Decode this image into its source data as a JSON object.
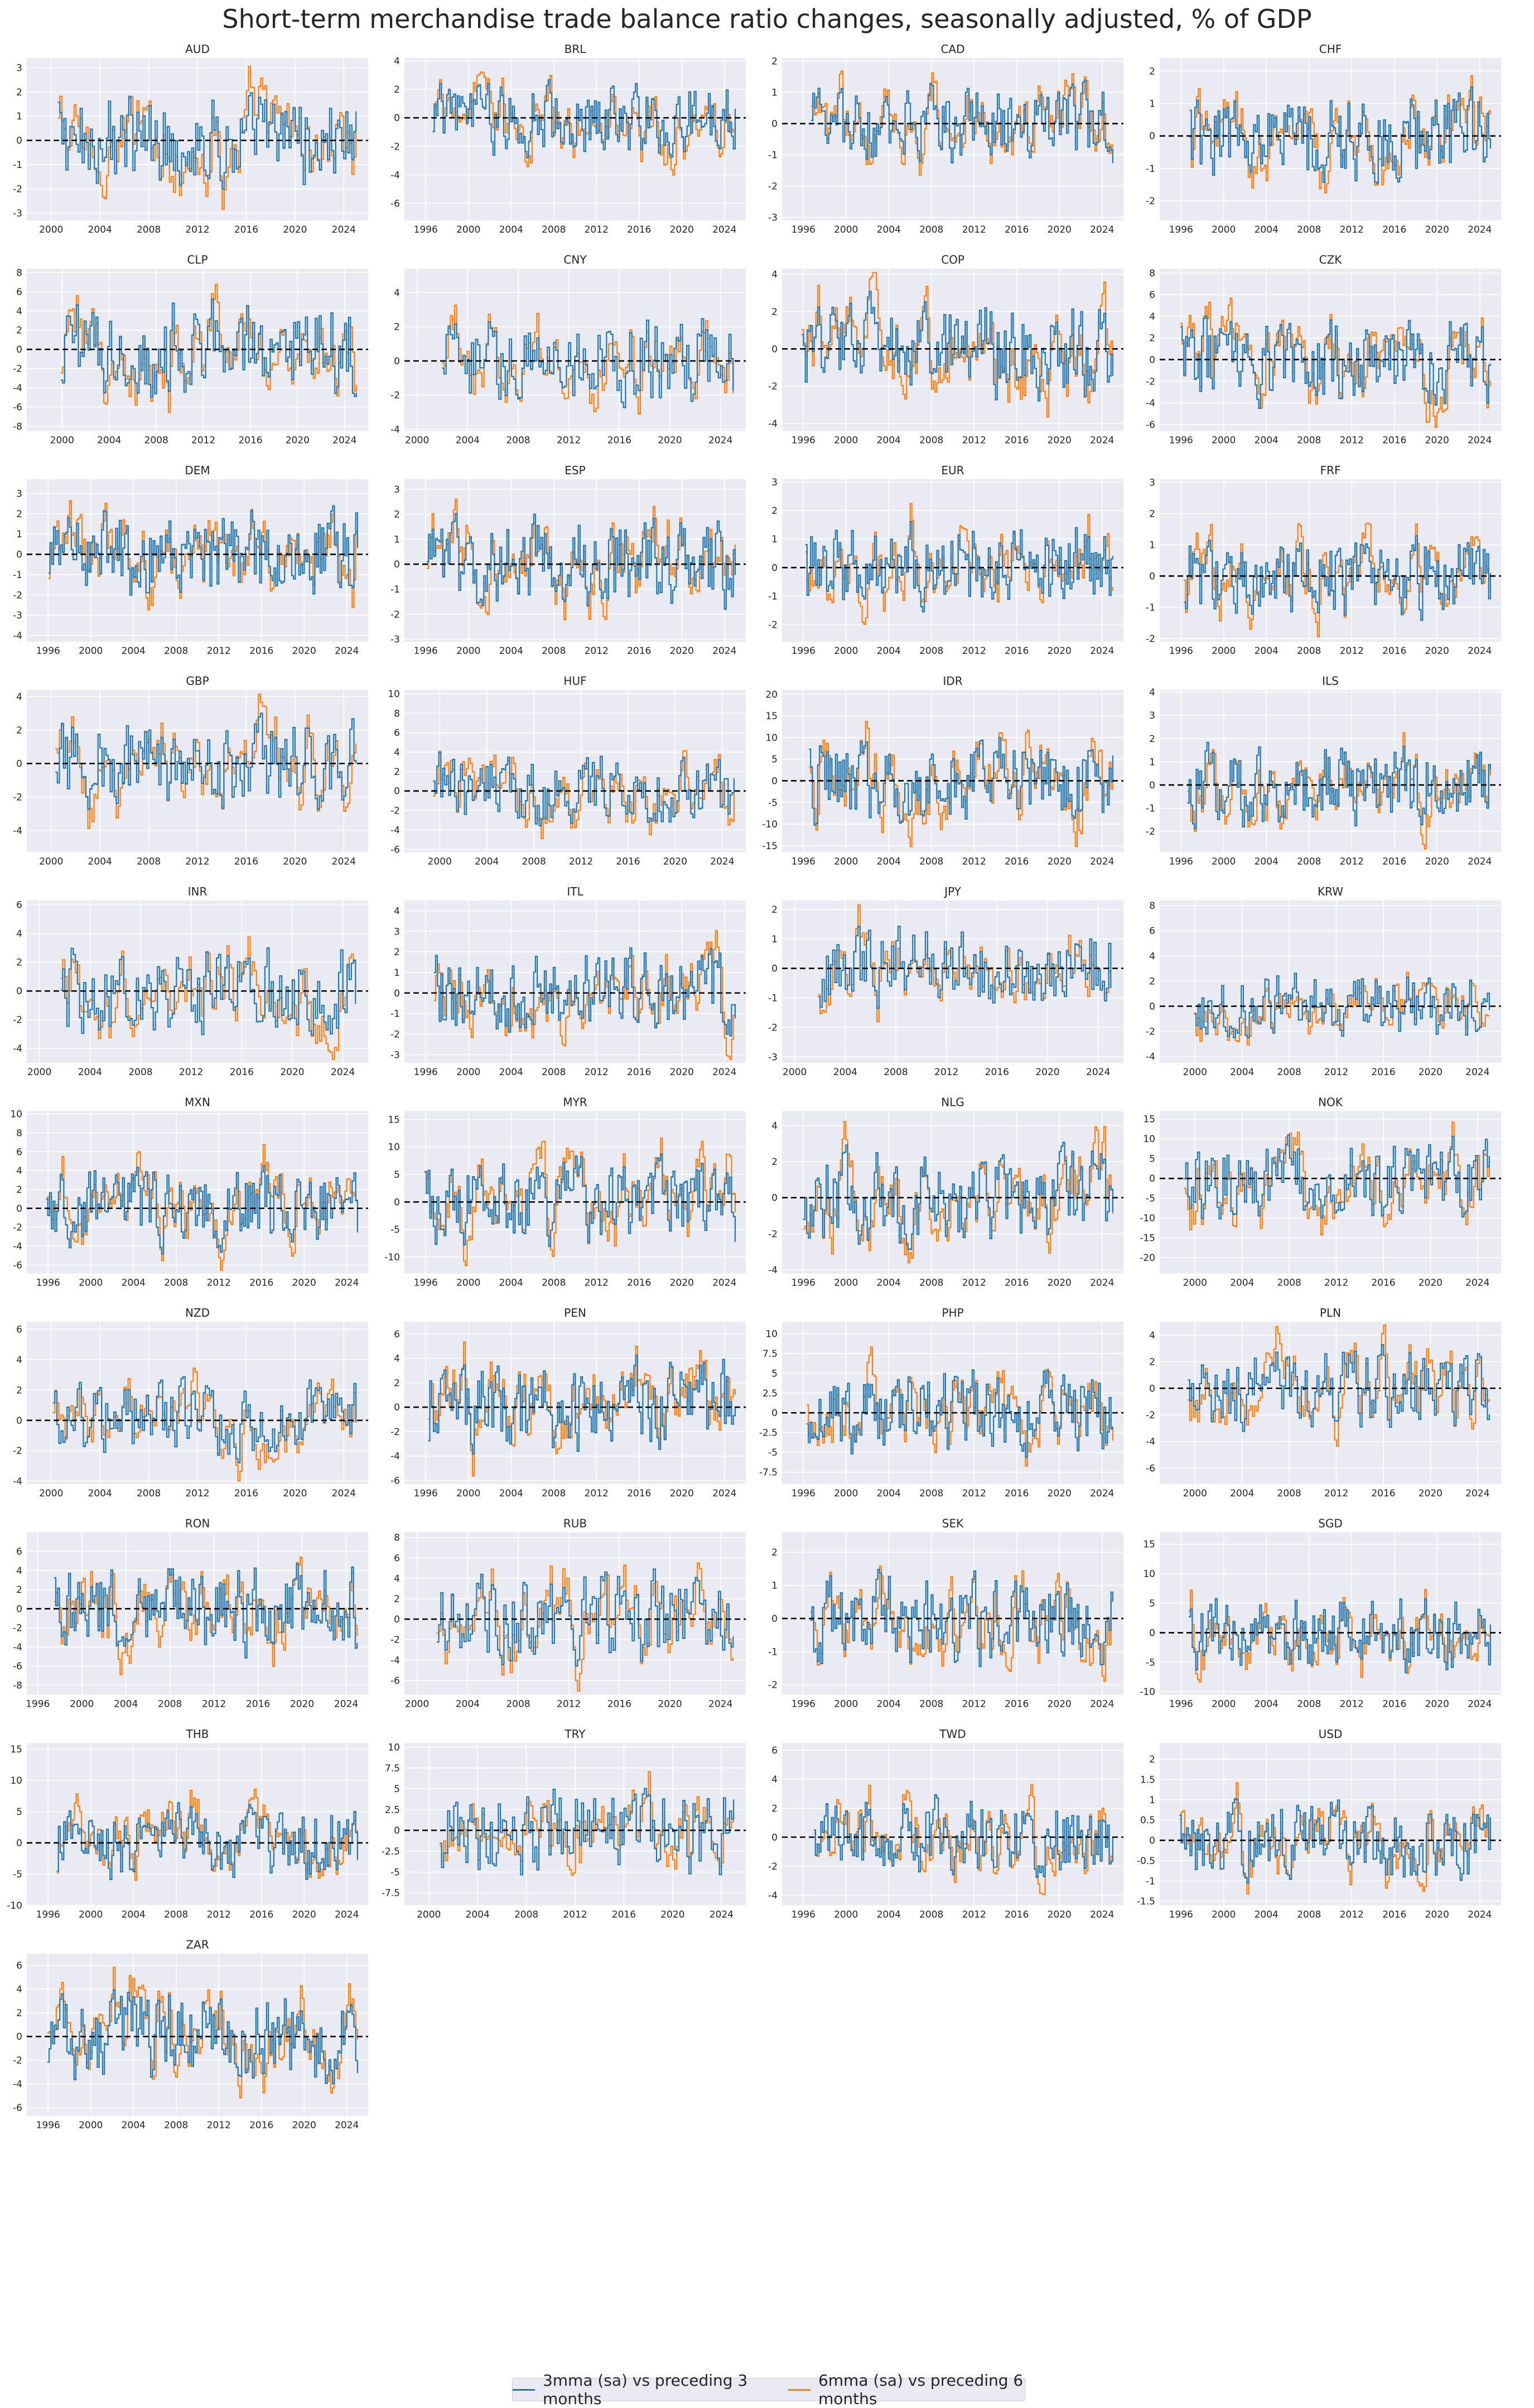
{
  "title": "Short-term merchandise trade balance ratio changes, seasonally adjusted, % of GDP",
  "colors": {
    "series1": "#1f77b4",
    "series2": "#ff7f0e",
    "panel_bg": "#eaeaf2",
    "grid": "#ffffff",
    "zero_line": "#000000"
  },
  "legend": {
    "series1": "3mma (sa) vs preceding 3 months",
    "series2": "6mma (sa) vs preceding 6 months"
  },
  "chart_data": [
    {
      "type": "line",
      "title": "AUD",
      "xlim": [
        1998,
        2026
      ],
      "ylim": [
        -3.3,
        3.4
      ],
      "xticks": [
        2000,
        2004,
        2008,
        2012,
        2016,
        2020,
        2024
      ],
      "yticks": [
        -3,
        -2,
        -1,
        0,
        1,
        2,
        3
      ],
      "series": [
        {
          "name": "3mma (sa) vs preceding 3 months"
        },
        {
          "name": "6mma (sa) vs preceding 6 months"
        }
      ]
    },
    {
      "type": "line",
      "title": "BRL",
      "xlim": [
        1994,
        2026
      ],
      "ylim": [
        -7.2,
        4.2
      ],
      "xticks": [
        1996,
        2000,
        2004,
        2008,
        2012,
        2016,
        2020,
        2024
      ],
      "yticks": [
        -6,
        -4,
        -2,
        0,
        2,
        4
      ]
    },
    {
      "type": "line",
      "title": "CAD",
      "xlim": [
        1994,
        2026
      ],
      "ylim": [
        -3.1,
        2.1
      ],
      "xticks": [
        1996,
        2000,
        2004,
        2008,
        2012,
        2016,
        2020,
        2024
      ],
      "yticks": [
        -3,
        -2,
        -1,
        0,
        1,
        2
      ]
    },
    {
      "type": "line",
      "title": "CHF",
      "xlim": [
        1994,
        2026
      ],
      "ylim": [
        -2.6,
        2.4
      ],
      "xticks": [
        1996,
        2000,
        2004,
        2008,
        2012,
        2016,
        2020,
        2024
      ],
      "yticks": [
        -2,
        -1,
        0,
        1,
        2
      ]
    },
    {
      "type": "line",
      "title": "CLP",
      "xlim": [
        1997,
        2026
      ],
      "ylim": [
        -8.5,
        8.4
      ],
      "xticks": [
        2000,
        2004,
        2008,
        2012,
        2016,
        2020,
        2024
      ],
      "yticks": [
        -8,
        -6,
        -4,
        -2,
        0,
        2,
        4,
        6,
        8
      ]
    },
    {
      "type": "line",
      "title": "CNY",
      "xlim": [
        1999,
        2026
      ],
      "ylim": [
        -4.1,
        5.4
      ],
      "xticks": [
        2000,
        2004,
        2008,
        2012,
        2016,
        2020,
        2024
      ],
      "yticks": [
        -4,
        -2,
        0,
        2,
        4
      ]
    },
    {
      "type": "line",
      "title": "COP",
      "xlim": [
        1994,
        2026
      ],
      "ylim": [
        -4.4,
        4.3
      ],
      "xticks": [
        1996,
        2000,
        2004,
        2008,
        2012,
        2016,
        2020,
        2024
      ],
      "yticks": [
        -4,
        -2,
        0,
        2,
        4
      ]
    },
    {
      "type": "line",
      "title": "CZK",
      "xlim": [
        1994,
        2026
      ],
      "ylim": [
        -6.6,
        8.4
      ],
      "xticks": [
        1996,
        2000,
        2004,
        2008,
        2012,
        2016,
        2020,
        2024
      ],
      "yticks": [
        -6,
        -4,
        -2,
        0,
        2,
        4,
        6,
        8
      ]
    },
    {
      "type": "line",
      "title": "DEM",
      "xlim": [
        1994,
        2026
      ],
      "ylim": [
        -4.3,
        3.7
      ],
      "xticks": [
        1996,
        2000,
        2004,
        2008,
        2012,
        2016,
        2020,
        2024
      ],
      "yticks": [
        -4,
        -3,
        -2,
        -1,
        0,
        1,
        2,
        3
      ]
    },
    {
      "type": "line",
      "title": "ESP",
      "xlim": [
        1994,
        2026
      ],
      "ylim": [
        -3.1,
        3.4
      ],
      "xticks": [
        1996,
        2000,
        2004,
        2008,
        2012,
        2016,
        2020,
        2024
      ],
      "yticks": [
        -3,
        -2,
        -1,
        0,
        1,
        2,
        3
      ]
    },
    {
      "type": "line",
      "title": "EUR",
      "xlim": [
        1994,
        2026
      ],
      "ylim": [
        -2.6,
        3.1
      ],
      "xticks": [
        1996,
        2000,
        2004,
        2008,
        2012,
        2016,
        2020,
        2024
      ],
      "yticks": [
        -2,
        -1,
        0,
        1,
        2,
        3
      ]
    },
    {
      "type": "line",
      "title": "FRF",
      "xlim": [
        1994,
        2026
      ],
      "ylim": [
        -2.1,
        3.1
      ],
      "xticks": [
        1996,
        2000,
        2004,
        2008,
        2012,
        2016,
        2020,
        2024
      ],
      "yticks": [
        -2,
        -1,
        0,
        1,
        2,
        3
      ]
    },
    {
      "type": "line",
      "title": "GBP",
      "xlim": [
        1998,
        2026
      ],
      "ylim": [
        -5.3,
        4.4
      ],
      "xticks": [
        2000,
        2004,
        2008,
        2012,
        2016,
        2020,
        2024
      ],
      "yticks": [
        -4,
        -2,
        0,
        2,
        4
      ]
    },
    {
      "type": "line",
      "title": "HUF",
      "xlim": [
        1997,
        2026
      ],
      "ylim": [
        -6.3,
        10.4
      ],
      "xticks": [
        2000,
        2004,
        2008,
        2012,
        2016,
        2020,
        2024
      ],
      "yticks": [
        -6,
        -4,
        -2,
        0,
        2,
        4,
        6,
        8,
        10
      ]
    },
    {
      "type": "line",
      "title": "IDR",
      "xlim": [
        1994,
        2026
      ],
      "ylim": [
        -16.5,
        21
      ],
      "xticks": [
        1996,
        2000,
        2004,
        2008,
        2012,
        2016,
        2020,
        2024
      ],
      "yticks": [
        -15,
        -10,
        -5,
        0,
        5,
        10,
        15,
        20
      ]
    },
    {
      "type": "line",
      "title": "ILS",
      "xlim": [
        1994,
        2026
      ],
      "ylim": [
        -2.9,
        4.1
      ],
      "xticks": [
        1996,
        2000,
        2004,
        2008,
        2012,
        2016,
        2020,
        2024
      ],
      "yticks": [
        -2,
        -1,
        0,
        1,
        2,
        3,
        4
      ]
    },
    {
      "type": "line",
      "title": "INR",
      "xlim": [
        1999,
        2026
      ],
      "ylim": [
        -5,
        6.3
      ],
      "xticks": [
        2000,
        2004,
        2008,
        2012,
        2016,
        2020,
        2024
      ],
      "yticks": [
        -4,
        -2,
        0,
        2,
        4,
        6
      ]
    },
    {
      "type": "line",
      "title": "ITL",
      "xlim": [
        1994,
        2026
      ],
      "ylim": [
        -3.4,
        4.5
      ],
      "xticks": [
        1996,
        2000,
        2004,
        2008,
        2012,
        2016,
        2020,
        2024
      ],
      "yticks": [
        -3,
        -2,
        -1,
        0,
        1,
        2,
        3,
        4
      ]
    },
    {
      "type": "line",
      "title": "JPY",
      "xlim": [
        1999,
        2026
      ],
      "ylim": [
        -3.2,
        2.3
      ],
      "xticks": [
        2000,
        2004,
        2008,
        2012,
        2016,
        2020,
        2024
      ],
      "yticks": [
        -3,
        -2,
        -1,
        0,
        1,
        2
      ]
    },
    {
      "type": "line",
      "title": "KRW",
      "xlim": [
        1997,
        2026
      ],
      "ylim": [
        -4.5,
        8.4
      ],
      "xticks": [
        2000,
        2004,
        2008,
        2012,
        2016,
        2020,
        2024
      ],
      "yticks": [
        -4,
        -2,
        0,
        2,
        4,
        6,
        8
      ]
    },
    {
      "type": "line",
      "title": "MXN",
      "xlim": [
        1994,
        2026
      ],
      "ylim": [
        -6.9,
        10.3
      ],
      "xticks": [
        1996,
        2000,
        2004,
        2008,
        2012,
        2016,
        2020,
        2024
      ],
      "yticks": [
        -6,
        -4,
        -2,
        0,
        2,
        4,
        6,
        8,
        10
      ]
    },
    {
      "type": "line",
      "title": "MYR",
      "xlim": [
        1994,
        2026
      ],
      "ylim": [
        -13,
        16.5
      ],
      "xticks": [
        1996,
        2000,
        2004,
        2008,
        2012,
        2016,
        2020,
        2024
      ],
      "yticks": [
        -10,
        -5,
        0,
        5,
        10,
        15
      ]
    },
    {
      "type": "line",
      "title": "NLG",
      "xlim": [
        1994,
        2026
      ],
      "ylim": [
        -4.2,
        4.8
      ],
      "xticks": [
        1996,
        2000,
        2004,
        2008,
        2012,
        2016,
        2020,
        2024
      ],
      "yticks": [
        -4,
        -2,
        0,
        2,
        4
      ]
    },
    {
      "type": "line",
      "title": "NOK",
      "xlim": [
        1997,
        2026
      ],
      "ylim": [
        -24,
        17
      ],
      "xticks": [
        2000,
        2004,
        2008,
        2012,
        2016,
        2020,
        2024
      ],
      "yticks": [
        -20,
        -15,
        -10,
        -5,
        0,
        5,
        10,
        15
      ]
    },
    {
      "type": "line",
      "title": "NZD",
      "xlim": [
        1998,
        2026
      ],
      "ylim": [
        -4.2,
        6.5
      ],
      "xticks": [
        2000,
        2004,
        2008,
        2012,
        2016,
        2020,
        2024
      ],
      "yticks": [
        -4,
        -2,
        0,
        2,
        4,
        6
      ]
    },
    {
      "type": "line",
      "title": "PEN",
      "xlim": [
        1994,
        2026
      ],
      "ylim": [
        -6.3,
        7
      ],
      "xticks": [
        1996,
        2000,
        2004,
        2008,
        2012,
        2016,
        2020,
        2024
      ],
      "yticks": [
        -6,
        -4,
        -2,
        0,
        2,
        4,
        6
      ]
    },
    {
      "type": "line",
      "title": "PHP",
      "xlim": [
        1994,
        2026
      ],
      "ylim": [
        -9,
        11.5
      ],
      "xticks": [
        1996,
        2000,
        2004,
        2008,
        2012,
        2016,
        2020,
        2024
      ],
      "yticks": [
        -7.5,
        -5.0,
        -2.5,
        0.0,
        2.5,
        5.0,
        7.5,
        10.0
      ]
    },
    {
      "type": "line",
      "title": "PLN",
      "xlim": [
        1997,
        2026
      ],
      "ylim": [
        -7.2,
        5
      ],
      "xticks": [
        2000,
        2004,
        2008,
        2012,
        2016,
        2020,
        2024
      ],
      "yticks": [
        -6,
        -4,
        -2,
        0,
        2,
        4
      ]
    },
    {
      "type": "line",
      "title": "RON",
      "xlim": [
        1995,
        2026
      ],
      "ylim": [
        -9,
        8
      ],
      "xticks": [
        1996,
        2000,
        2004,
        2008,
        2012,
        2016,
        2020,
        2024
      ],
      "yticks": [
        -8,
        -6,
        -4,
        -2,
        0,
        2,
        4,
        6
      ]
    },
    {
      "type": "line",
      "title": "RUB",
      "xlim": [
        1999,
        2026
      ],
      "ylim": [
        -7.4,
        8.5
      ],
      "xticks": [
        2000,
        2004,
        2008,
        2012,
        2016,
        2020,
        2024
      ],
      "yticks": [
        -6,
        -4,
        -2,
        0,
        2,
        4,
        6,
        8
      ]
    },
    {
      "type": "line",
      "title": "SEK",
      "xlim": [
        1994,
        2026
      ],
      "ylim": [
        -2.3,
        2.6
      ],
      "xticks": [
        1996,
        2000,
        2004,
        2008,
        2012,
        2016,
        2020,
        2024
      ],
      "yticks": [
        -2,
        -1,
        0,
        1,
        2
      ]
    },
    {
      "type": "line",
      "title": "SGD",
      "xlim": [
        1994,
        2026
      ],
      "ylim": [
        -10.5,
        17
      ],
      "xticks": [
        1996,
        2000,
        2004,
        2008,
        2012,
        2016,
        2020,
        2024
      ],
      "yticks": [
        -10,
        -5,
        0,
        5,
        10,
        15
      ]
    },
    {
      "type": "line",
      "title": "THB",
      "xlim": [
        1994,
        2026
      ],
      "ylim": [
        -10,
        16
      ],
      "xticks": [
        1996,
        2000,
        2004,
        2008,
        2012,
        2016,
        2020,
        2024
      ],
      "yticks": [
        -10,
        -5,
        0,
        5,
        10,
        15
      ]
    },
    {
      "type": "line",
      "title": "TRY",
      "xlim": [
        1998,
        2026
      ],
      "ylim": [
        -9,
        10.5
      ],
      "xticks": [
        2000,
        2004,
        2008,
        2012,
        2016,
        2020,
        2024
      ],
      "yticks": [
        -7.5,
        -5.0,
        -2.5,
        0.0,
        2.5,
        5.0,
        7.5,
        10.0
      ]
    },
    {
      "type": "line",
      "title": "TWD",
      "xlim": [
        1994,
        2026
      ],
      "ylim": [
        -4.7,
        6.5
      ],
      "xticks": [
        1996,
        2000,
        2004,
        2008,
        2012,
        2016,
        2020,
        2024
      ],
      "yticks": [
        -4,
        -2,
        0,
        2,
        4,
        6
      ]
    },
    {
      "type": "line",
      "title": "USD",
      "xlim": [
        1994,
        2026
      ],
      "ylim": [
        -1.6,
        2.4
      ],
      "xticks": [
        1996,
        2000,
        2004,
        2008,
        2012,
        2016,
        2020,
        2024
      ],
      "yticks": [
        -1.5,
        -1.0,
        -0.5,
        0.0,
        0.5,
        1.0,
        1.5,
        2.0
      ]
    },
    {
      "type": "line",
      "title": "ZAR",
      "xlim": [
        1994,
        2026
      ],
      "ylim": [
        -6.7,
        7
      ],
      "xticks": [
        1996,
        2000,
        2004,
        2008,
        2012,
        2016,
        2020,
        2024
      ],
      "yticks": [
        -6,
        -4,
        -2,
        0,
        2,
        4,
        6
      ]
    }
  ]
}
